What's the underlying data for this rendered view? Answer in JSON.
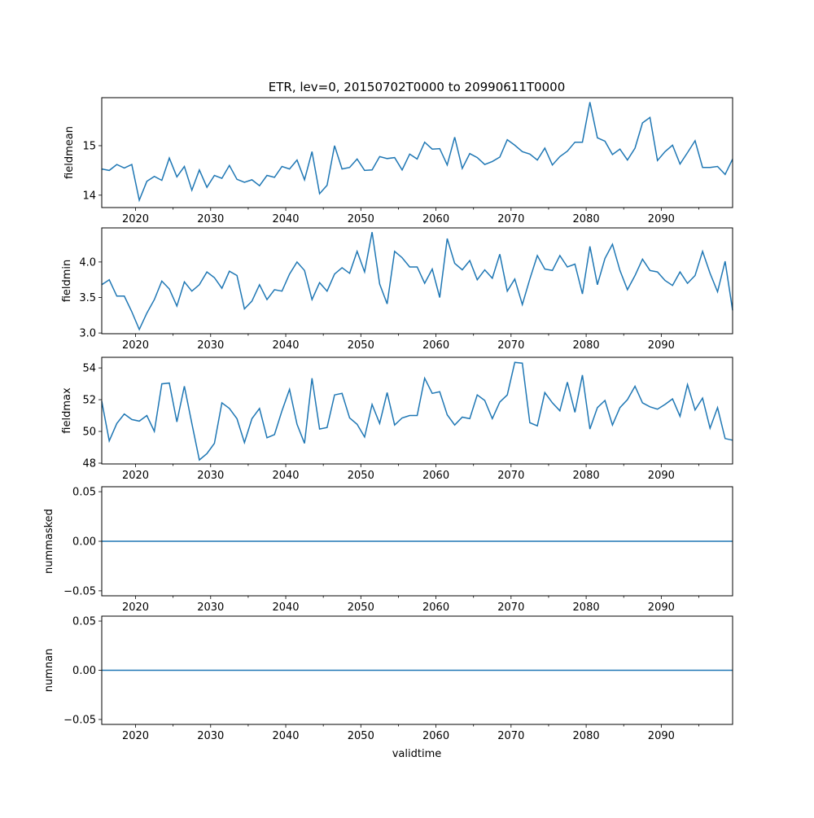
{
  "chart_data": {
    "type": "line",
    "title": "ETR, lev=0, 20150702T0000 to 20990611T0000",
    "xlabel": "validtime",
    "x_start_year": 2015,
    "x_end_year": 2099,
    "xlim": [
      2015.5,
      2099.5
    ],
    "x_ticks": [
      2020,
      2030,
      2040,
      2050,
      2060,
      2070,
      2080,
      2090
    ],
    "x_minor_step": 5,
    "line_color": "#1f77b4",
    "panels": [
      {
        "ylabel": "fieldmean",
        "ylim": [
          13.75,
          15.97
        ],
        "yticks": [
          "14",
          "15"
        ],
        "ytick_values": [
          14,
          15
        ],
        "values": [
          14.53,
          14.5,
          14.62,
          14.55,
          14.62,
          13.9,
          14.28,
          14.38,
          14.3,
          14.75,
          14.37,
          14.58,
          14.1,
          14.51,
          14.16,
          14.4,
          14.34,
          14.6,
          14.32,
          14.26,
          14.31,
          14.19,
          14.4,
          14.36,
          14.58,
          14.53,
          14.71,
          14.31,
          14.88,
          14.03,
          14.2,
          15.0,
          14.53,
          14.56,
          14.73,
          14.5,
          14.51,
          14.78,
          14.74,
          14.76,
          14.51,
          14.83,
          14.73,
          15.07,
          14.93,
          14.94,
          14.61,
          15.17,
          14.54,
          14.84,
          14.76,
          14.62,
          14.68,
          14.77,
          15.12,
          15.01,
          14.88,
          14.83,
          14.71,
          14.95,
          14.61,
          14.78,
          14.89,
          15.07,
          15.07,
          15.88,
          15.16,
          15.09,
          14.82,
          14.93,
          14.71,
          14.95,
          15.46,
          15.57,
          14.7,
          14.88,
          15.01,
          14.63,
          14.86,
          15.1,
          14.56,
          14.56,
          14.58,
          14.42,
          14.73
        ]
      },
      {
        "ylabel": "fieldmin",
        "ylim": [
          2.99,
          4.48
        ],
        "yticks": [
          "3.0",
          "3.5",
          "4.0"
        ],
        "ytick_values": [
          3.0,
          3.5,
          4.0
        ],
        "values": [
          3.68,
          3.75,
          3.52,
          3.52,
          3.3,
          3.05,
          3.28,
          3.47,
          3.73,
          3.62,
          3.38,
          3.72,
          3.59,
          3.68,
          3.86,
          3.78,
          3.63,
          3.87,
          3.81,
          3.34,
          3.45,
          3.68,
          3.47,
          3.61,
          3.59,
          3.83,
          4.0,
          3.88,
          3.47,
          3.71,
          3.59,
          3.83,
          3.92,
          3.84,
          4.15,
          3.86,
          4.42,
          3.69,
          3.41,
          4.15,
          4.06,
          3.93,
          3.93,
          3.7,
          3.9,
          3.5,
          4.33,
          3.98,
          3.89,
          4.02,
          3.75,
          3.89,
          3.77,
          4.11,
          3.59,
          3.76,
          3.4,
          3.76,
          4.09,
          3.9,
          3.88,
          4.09,
          3.93,
          3.97,
          3.55,
          4.22,
          3.68,
          4.05,
          4.25,
          3.88,
          3.61,
          3.81,
          4.04,
          3.88,
          3.86,
          3.74,
          3.67,
          3.86,
          3.7,
          3.81,
          4.15,
          3.84,
          3.58,
          4.01,
          3.32
        ]
      },
      {
        "ylabel": "fieldmax",
        "ylim": [
          47.95,
          54.67
        ],
        "yticks": [
          "48",
          "50",
          "52",
          "54"
        ],
        "ytick_values": [
          48,
          50,
          52,
          54
        ],
        "values": [
          51.9,
          49.4,
          50.5,
          51.1,
          50.75,
          50.65,
          51.0,
          50.0,
          53.0,
          53.05,
          50.6,
          52.85,
          50.5,
          48.2,
          48.6,
          49.25,
          51.8,
          51.45,
          50.8,
          49.3,
          50.8,
          51.45,
          49.6,
          49.8,
          51.3,
          52.65,
          50.45,
          49.25,
          53.35,
          50.15,
          50.25,
          52.3,
          52.4,
          50.85,
          50.45,
          49.65,
          51.7,
          50.5,
          52.45,
          50.4,
          50.85,
          51.0,
          51.0,
          53.35,
          52.4,
          52.5,
          51.05,
          50.4,
          50.9,
          50.8,
          52.3,
          51.95,
          50.8,
          51.85,
          52.3,
          54.35,
          54.3,
          50.55,
          50.35,
          52.45,
          51.8,
          51.3,
          53.1,
          51.2,
          53.55,
          50.15,
          51.5,
          51.95,
          50.4,
          51.5,
          52.0,
          52.85,
          51.8,
          51.55,
          51.4,
          51.7,
          52.05,
          50.95,
          52.95,
          51.35,
          52.1,
          50.2,
          51.5,
          49.55,
          49.45
        ]
      },
      {
        "ylabel": "nummasked",
        "ylim": [
          -0.055,
          0.055
        ],
        "yticks": [
          "−0.05",
          "0.00",
          "0.05"
        ],
        "ytick_values": [
          -0.05,
          0,
          0.05
        ],
        "constant": 0
      },
      {
        "ylabel": "numnan",
        "ylim": [
          -0.055,
          0.055
        ],
        "yticks": [
          "−0.05",
          "0.00",
          "0.05"
        ],
        "ytick_values": [
          -0.05,
          0,
          0.05
        ],
        "constant": 0
      }
    ]
  }
}
